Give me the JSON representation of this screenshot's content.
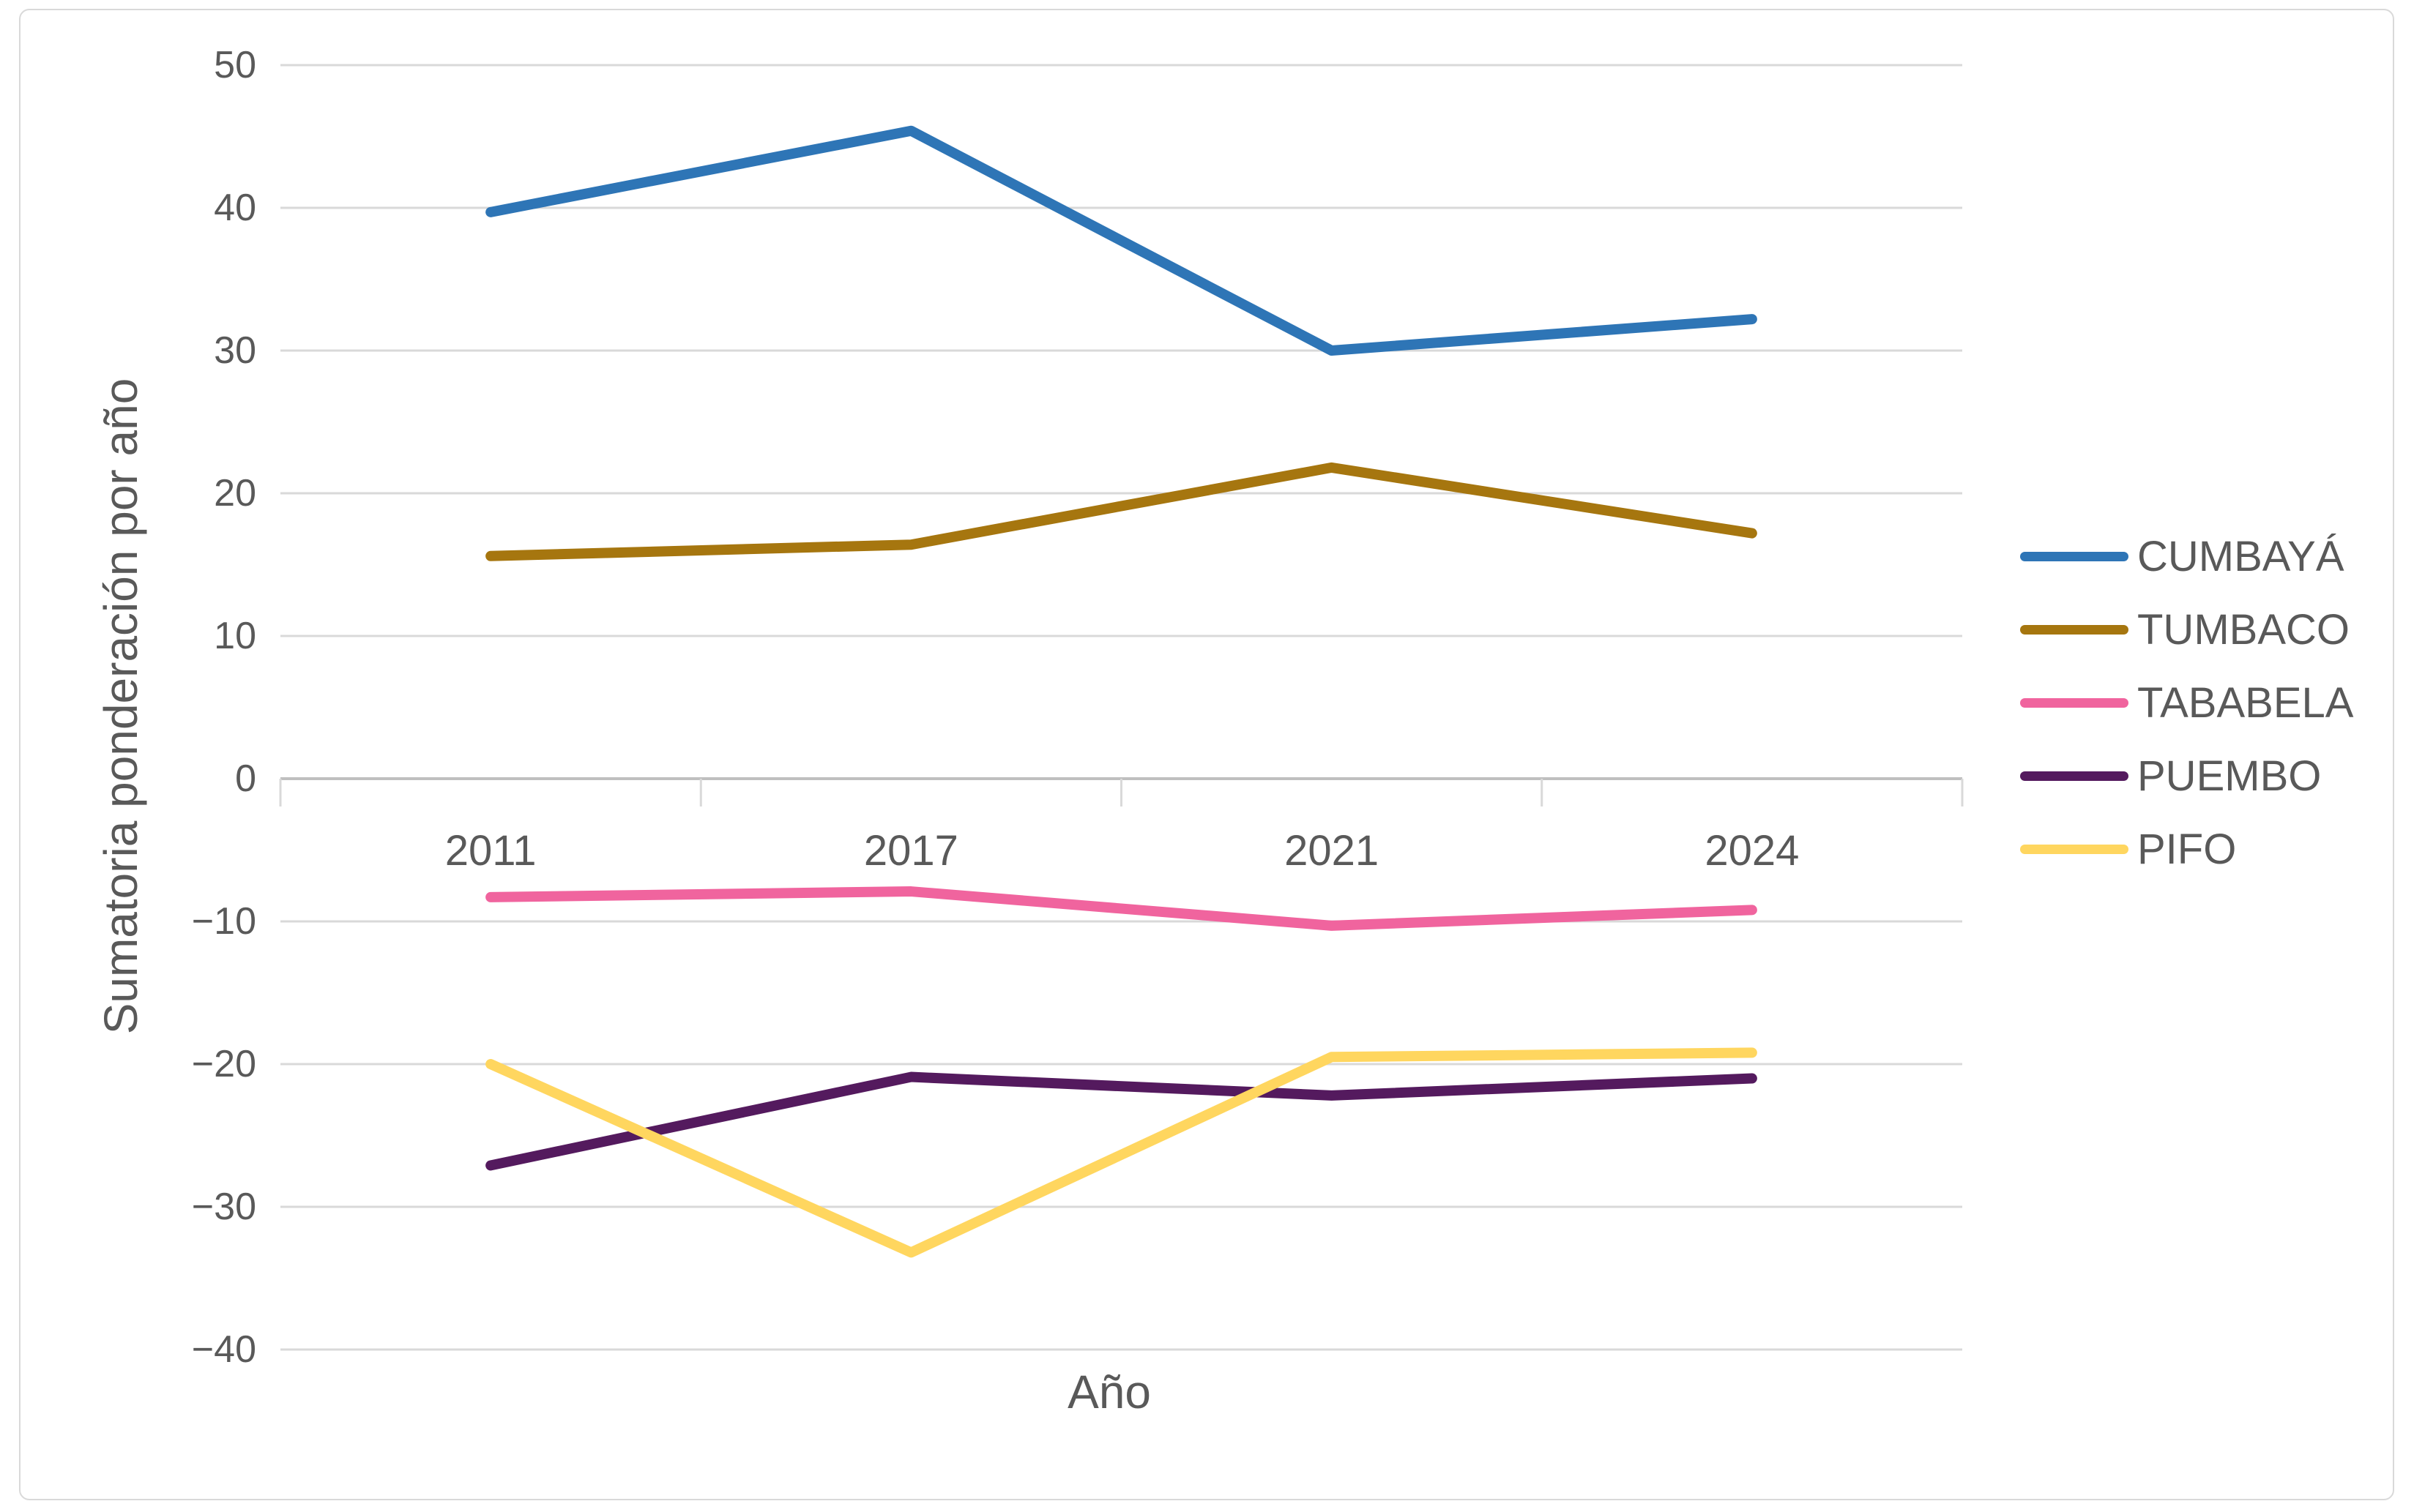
{
  "chart_data": {
    "type": "line",
    "title": "",
    "categories": [
      "2011",
      "2017",
      "2021",
      "2024"
    ],
    "series": [
      {
        "name": "CUMBAYÁ",
        "color": "#2E75B6",
        "values": [
          39.7,
          45.4,
          30.0,
          32.2
        ]
      },
      {
        "name": "TUMBACO",
        "color": "#A6760F",
        "values": [
          15.6,
          16.4,
          21.8,
          17.2
        ]
      },
      {
        "name": "TABABELA",
        "color": "#F0649E",
        "values": [
          -8.3,
          -7.9,
          -10.3,
          -9.2
        ]
      },
      {
        "name": "PUEMBO",
        "color": "#541A5E",
        "values": [
          -27.1,
          -20.9,
          -22.2,
          -21.0
        ]
      },
      {
        "name": "PIFO",
        "color": "#FFD65F",
        "values": [
          -20.0,
          -33.2,
          -19.5,
          -19.2
        ]
      }
    ],
    "xlabel": "Año",
    "ylabel": "Sumatoria ponderación por año",
    "ylim": [
      -40,
      50
    ],
    "ytick_step": 10,
    "grid": true,
    "legend_position": "right"
  },
  "colors": {
    "gridline": "#D9D9D9",
    "zero_axis": "#BFBFBF",
    "tick_mark": "#D9D9D9",
    "text": "#595959",
    "frame_border": "#D9D9D9",
    "background": "#FFFFFF"
  }
}
